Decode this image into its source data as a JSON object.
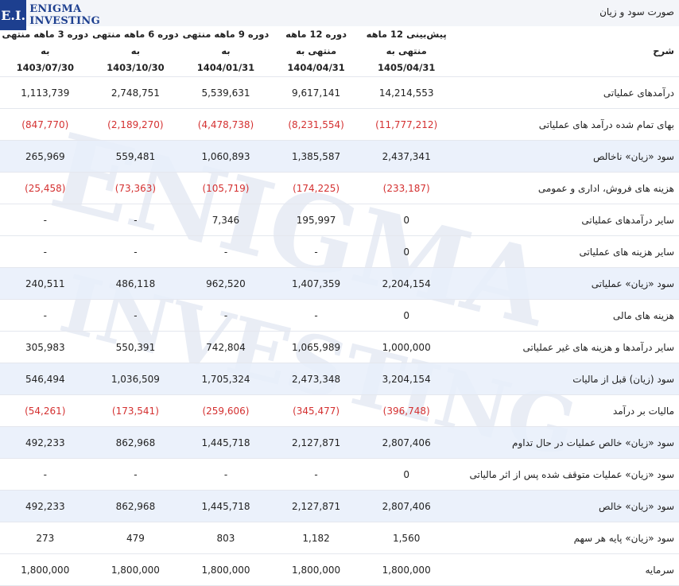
{
  "logo": {
    "mark": "E.I.",
    "line1": "Enigma",
    "line2": "Investing"
  },
  "title": "صورت سود و زیان",
  "watermark": [
    "ENIGMA",
    "INVESTING"
  ],
  "header": {
    "label": "شرح",
    "columns": [
      {
        "line1": "پیش‌بینی 12 ماهه منتهی به",
        "line2": "1405/04/31"
      },
      {
        "line1": "دوره 12 ماهه منتهی به",
        "line2": "1404/04/31"
      },
      {
        "line1": "دوره 9 ماهه منتهی به",
        "line2": "1404/01/31"
      },
      {
        "line1": "دوره 6 ماهه منتهی به",
        "line2": "1403/10/30"
      },
      {
        "line1": "دوره 3 ماهه منتهی به",
        "line2": "1403/07/30"
      }
    ]
  },
  "rows": [
    {
      "label": "درآمدهای عملیاتی",
      "highlight": false,
      "values": [
        "14,214,553",
        "9,617,141",
        "5,539,631",
        "2,748,751",
        "1,113,739"
      ]
    },
    {
      "label": "بهای تمام شده درآمد های عملیاتی",
      "highlight": false,
      "values": [
        "(11,777,212)",
        "(8,231,554)",
        "(4,478,738)",
        "(2,189,270)",
        "(847,770)"
      ]
    },
    {
      "label": "سود «زیان» ناخالص",
      "highlight": true,
      "values": [
        "2,437,341",
        "1,385,587",
        "1,060,893",
        "559,481",
        "265,969"
      ]
    },
    {
      "label": "هزینه های فروش، اداری و عمومی",
      "highlight": false,
      "values": [
        "(233,187)",
        "(174,225)",
        "(105,719)",
        "(73,363)",
        "(25,458)"
      ]
    },
    {
      "label": "سایر درآمدهای عملیاتی",
      "highlight": false,
      "values": [
        "0",
        "195,997",
        "7,346",
        "-",
        "-"
      ]
    },
    {
      "label": "سایر هزینه های عملیاتی",
      "highlight": false,
      "values": [
        "0",
        "-",
        "-",
        "-",
        "-"
      ]
    },
    {
      "label": "سود «زیان» عملیاتی",
      "highlight": true,
      "values": [
        "2,204,154",
        "1,407,359",
        "962,520",
        "486,118",
        "240,511"
      ]
    },
    {
      "label": "هزینه های مالی",
      "highlight": false,
      "values": [
        "0",
        "-",
        "-",
        "-",
        "-"
      ]
    },
    {
      "label": "سایر درآمدها و هزینه های غیر عملیاتی",
      "highlight": false,
      "values": [
        "1,000,000",
        "1,065,989",
        "742,804",
        "550,391",
        "305,983"
      ]
    },
    {
      "label": "سود (زیان) قبل از مالیات",
      "highlight": true,
      "values": [
        "3,204,154",
        "2,473,348",
        "1,705,324",
        "1,036,509",
        "546,494"
      ]
    },
    {
      "label": "مالیات بر درآمد",
      "highlight": false,
      "values": [
        "(396,748)",
        "(345,477)",
        "(259,606)",
        "(173,541)",
        "(54,261)"
      ]
    },
    {
      "label": "سود «زیان» خالص عملیات در حال تداوم",
      "highlight": true,
      "values": [
        "2,807,406",
        "2,127,871",
        "1,445,718",
        "862,968",
        "492,233"
      ]
    },
    {
      "label": "سود «زیان» عملیات متوقف شده پس از اثر مالیاتی",
      "highlight": false,
      "values": [
        "0",
        "-",
        "-",
        "-",
        "-"
      ]
    },
    {
      "label": "سود «زیان» خالص",
      "highlight": true,
      "values": [
        "2,807,406",
        "2,127,871",
        "1,445,718",
        "862,968",
        "492,233"
      ]
    },
    {
      "label": "سود «زیان» پایه هر سهم",
      "highlight": false,
      "values": [
        "1,560",
        "1,182",
        "803",
        "479",
        "273"
      ]
    },
    {
      "label": "سرمایه",
      "highlight": false,
      "values": [
        "1,800,000",
        "1,800,000",
        "1,800,000",
        "1,800,000",
        "1,800,000"
      ]
    }
  ],
  "colors": {
    "negative": "#d43030",
    "brand": "#1d3f8f",
    "highlight_row": "#e8eefa"
  }
}
